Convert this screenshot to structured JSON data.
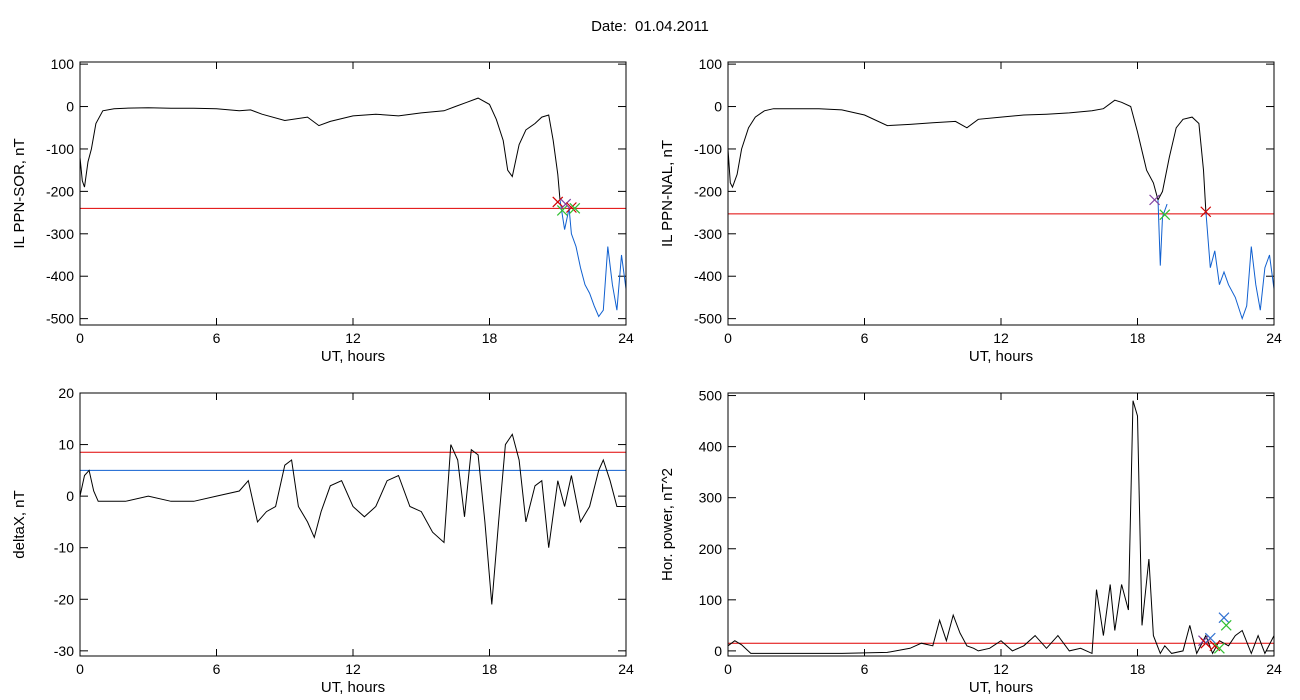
{
  "title": {
    "label": "Date:",
    "date": "01.04.2011"
  },
  "colors": {
    "trace": "#000000",
    "threshold": "#e00000",
    "blue": "#1060d0",
    "marker_red": "#d00000",
    "marker_green": "#30c030",
    "marker_blue": "#3070d0",
    "marker_purple": "#8040a0"
  },
  "chart_data": [
    {
      "type": "line",
      "xlabel": "UT, hours",
      "ylabel": "IL PPN-SOR, nT",
      "xlim": [
        0,
        24
      ],
      "ylim": [
        -515,
        105
      ],
      "xticks": [
        0,
        6,
        12,
        18,
        24
      ],
      "yticks": [
        -500,
        -400,
        -300,
        -200,
        -100,
        0,
        100
      ],
      "hlines": [
        {
          "y": -240,
          "color": "#e00000"
        }
      ],
      "series": [
        {
          "color": "#000000",
          "x": [
            0,
            0.1,
            0.2,
            0.35,
            0.5,
            0.7,
            1.0,
            1.5,
            2,
            3,
            4,
            5,
            6,
            7,
            7.5,
            8,
            9,
            10,
            10.5,
            11,
            12,
            13,
            14,
            15,
            16,
            16.5,
            17,
            17.5,
            18,
            18.3,
            18.6,
            18.8,
            19,
            19.3,
            19.6,
            20,
            20.3,
            20.6,
            20.8,
            21,
            21.1
          ],
          "y": [
            -120,
            -175,
            -190,
            -130,
            -100,
            -40,
            -10,
            -5,
            -4,
            -3,
            -4,
            -4,
            -5,
            -10,
            -8,
            -18,
            -33,
            -25,
            -45,
            -35,
            -22,
            -18,
            -22,
            -15,
            -10,
            0,
            10,
            20,
            5,
            -30,
            -80,
            -150,
            -165,
            -90,
            -55,
            -40,
            -25,
            -20,
            -80,
            -160,
            -220
          ]
        },
        {
          "color": "#1060d0",
          "x": [
            21.1,
            21.3,
            21.5,
            21.6,
            21.8,
            22,
            22.2,
            22.4,
            22.6,
            22.8,
            23,
            23.2,
            23.4,
            23.6,
            23.8,
            24
          ],
          "y": [
            -220,
            -290,
            -240,
            -300,
            -330,
            -380,
            -420,
            -440,
            -470,
            -495,
            -480,
            -330,
            -420,
            -480,
            -350,
            -430
          ]
        }
      ],
      "markers": [
        {
          "x": 21.0,
          "y": -225,
          "color": "#d00000"
        },
        {
          "x": 21.2,
          "y": -245,
          "color": "#30c030"
        },
        {
          "x": 21.35,
          "y": -230,
          "color": "#8040a0"
        },
        {
          "x": 21.6,
          "y": -238,
          "color": "#d00000"
        },
        {
          "x": 21.75,
          "y": -240,
          "color": "#30c030"
        }
      ]
    },
    {
      "type": "line",
      "xlabel": "UT, hours",
      "ylabel": "IL PPN-NAL, nT",
      "xlim": [
        0,
        24
      ],
      "ylim": [
        -515,
        105
      ],
      "xticks": [
        0,
        6,
        12,
        18,
        24
      ],
      "yticks": [
        -500,
        -400,
        -300,
        -200,
        -100,
        0,
        100
      ],
      "hlines": [
        {
          "y": -253,
          "color": "#e00000"
        }
      ],
      "series": [
        {
          "color": "#000000",
          "x": [
            0,
            0.1,
            0.2,
            0.4,
            0.6,
            0.9,
            1.2,
            1.6,
            2,
            3,
            4,
            5,
            6,
            7,
            8,
            9,
            10,
            10.5,
            11,
            12,
            13,
            14,
            15,
            16,
            16.5,
            17,
            17.3,
            17.7,
            18,
            18.4,
            18.7,
            18.9,
            19.1,
            19.4,
            19.7,
            20,
            20.4,
            20.7,
            20.9,
            21.0
          ],
          "y": [
            -100,
            -180,
            -190,
            -160,
            -100,
            -50,
            -25,
            -10,
            -5,
            -5,
            -5,
            -8,
            -20,
            -45,
            -42,
            -38,
            -35,
            -50,
            -30,
            -25,
            -20,
            -18,
            -15,
            -10,
            -5,
            15,
            10,
            0,
            -60,
            -150,
            -180,
            -220,
            -200,
            -120,
            -50,
            -30,
            -25,
            -40,
            -150,
            -245
          ]
        },
        {
          "color": "#1060d0",
          "x": [
            18.9,
            19.0,
            19.1,
            19.3
          ],
          "y": [
            -220,
            -375,
            -260,
            -230
          ]
        },
        {
          "color": "#1060d0",
          "x": [
            21.0,
            21.2,
            21.4,
            21.6,
            21.8,
            22,
            22.3,
            22.6,
            22.8,
            23,
            23.2,
            23.4,
            23.6,
            23.8,
            24
          ],
          "y": [
            -245,
            -380,
            -340,
            -420,
            -390,
            -420,
            -450,
            -500,
            -470,
            -330,
            -420,
            -480,
            -380,
            -350,
            -430
          ]
        }
      ],
      "markers": [
        {
          "x": 18.75,
          "y": -220,
          "color": "#8040a0"
        },
        {
          "x": 19.2,
          "y": -255,
          "color": "#30c030"
        },
        {
          "x": 21.0,
          "y": -248,
          "color": "#d00000"
        }
      ]
    },
    {
      "type": "line",
      "xlabel": "UT, hours",
      "ylabel": "deltaX, nT",
      "xlim": [
        0,
        24
      ],
      "ylim": [
        -31,
        20
      ],
      "xticks": [
        0,
        6,
        12,
        18,
        24
      ],
      "yticks": [
        -30,
        -20,
        -10,
        0,
        10,
        20
      ],
      "hlines": [
        {
          "y": 8.5,
          "color": "#e00000"
        },
        {
          "y": 5,
          "color": "#1060d0"
        }
      ],
      "series": [
        {
          "color": "#000000",
          "x": [
            0,
            0.2,
            0.4,
            0.6,
            0.8,
            1,
            2,
            3,
            4,
            5,
            6,
            7,
            7.4,
            7.8,
            8.2,
            8.6,
            9,
            9.3,
            9.6,
            10,
            10.3,
            10.6,
            11,
            11.5,
            12,
            12.5,
            13,
            13.5,
            14,
            14.5,
            15,
            15.5,
            16,
            16.3,
            16.6,
            16.9,
            17.2,
            17.5,
            17.8,
            18.1,
            18.4,
            18.7,
            19,
            19.3,
            19.6,
            20,
            20.3,
            20.6,
            21,
            21.3,
            21.6,
            22,
            22.4,
            22.8,
            23,
            23.3,
            23.6,
            24
          ],
          "y": [
            0,
            4,
            5,
            1,
            -1,
            -1,
            -1,
            0,
            -1,
            -1,
            0,
            1,
            3,
            -5,
            -3,
            -2,
            6,
            7,
            -2,
            -5,
            -8,
            -3,
            2,
            3,
            -2,
            -4,
            -2,
            3,
            4,
            -2,
            -3,
            -7,
            -9,
            10,
            7,
            -4,
            9,
            8,
            -5,
            -21,
            -5,
            10,
            12,
            7,
            -5,
            2,
            3,
            -10,
            3,
            -2,
            4,
            -5,
            -2,
            5,
            7,
            3,
            -2,
            -2
          ]
        }
      ],
      "markers": []
    },
    {
      "type": "line",
      "xlabel": "UT, hours",
      "ylabel": "Hor. power, nT^2",
      "xlim": [
        0,
        24
      ],
      "ylim": [
        -10,
        505
      ],
      "xticks": [
        0,
        6,
        12,
        18,
        24
      ],
      "yticks": [
        0,
        100,
        200,
        300,
        400,
        500
      ],
      "hlines": [
        {
          "y": 15,
          "color": "#e00000"
        }
      ],
      "series": [
        {
          "color": "#000000",
          "x": [
            0,
            0.3,
            0.6,
            1,
            2,
            3,
            4,
            5,
            6,
            7,
            8,
            8.5,
            9,
            9.3,
            9.6,
            9.9,
            10.2,
            10.5,
            10.8,
            11,
            11.5,
            12,
            12.5,
            13,
            13.5,
            14,
            14.5,
            15,
            15.5,
            16,
            16.2,
            16.5,
            16.8,
            17,
            17.3,
            17.6,
            17.8,
            18,
            18.2,
            18.5,
            18.7,
            19,
            19.2,
            19.5,
            20,
            20.3,
            20.6,
            21,
            21.3,
            21.6,
            22,
            22.3,
            22.6,
            23,
            23.3,
            23.6,
            24
          ],
          "y": [
            10,
            20,
            12,
            -5,
            -5,
            -5,
            -5,
            -5,
            -4,
            -3,
            5,
            15,
            10,
            60,
            20,
            70,
            35,
            10,
            5,
            0,
            5,
            20,
            0,
            10,
            30,
            5,
            30,
            0,
            5,
            -5,
            120,
            30,
            130,
            40,
            130,
            80,
            490,
            460,
            50,
            180,
            30,
            -5,
            10,
            -5,
            0,
            50,
            -5,
            30,
            -5,
            20,
            10,
            30,
            40,
            -5,
            30,
            -5,
            30
          ]
        }
      ],
      "markers": [
        {
          "x": 20.9,
          "y": 20,
          "color": "#8040a0"
        },
        {
          "x": 21.0,
          "y": 15,
          "color": "#d00000"
        },
        {
          "x": 21.2,
          "y": 25,
          "color": "#3070d0"
        },
        {
          "x": 21.4,
          "y": 10,
          "color": "#d00000"
        },
        {
          "x": 21.6,
          "y": 5,
          "color": "#30c030"
        },
        {
          "x": 21.8,
          "y": 65,
          "color": "#3070d0"
        },
        {
          "x": 21.9,
          "y": 50,
          "color": "#30c030"
        }
      ]
    }
  ]
}
